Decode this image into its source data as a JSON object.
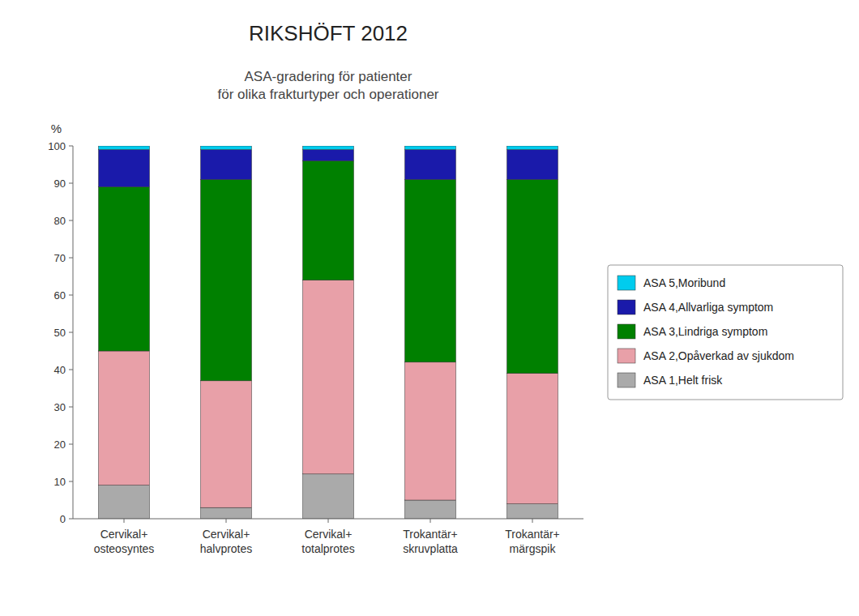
{
  "chart_data": {
    "type": "bar",
    "stacked": true,
    "title": "RIKSHÖFT 2012",
    "subtitle": "ASA-gradering för patienter\nför olika frakturtyper och operationer",
    "y_label": "%",
    "categories": [
      "Cervikal+\nosteosyntes",
      "Cervikal+\nhalvprotes",
      "Cervikal+\ntotalprotes",
      "Trokantär+\nskruvplatta",
      "Trokantär+\nmärgspik"
    ],
    "series": [
      {
        "name": "ASA 1,Helt frisk",
        "color": "#aaaaaa",
        "values": [
          9,
          3,
          12,
          5,
          4
        ]
      },
      {
        "name": "ASA 2,Opåverkad av sjukdom",
        "color": "#e8a0a8",
        "values": [
          36,
          34,
          52,
          37,
          35
        ]
      },
      {
        "name": "ASA 3,Lindriga symptom",
        "color": "#008000",
        "values": [
          44,
          54,
          32,
          49,
          52
        ]
      },
      {
        "name": "ASA 4,Allvarliga symptom",
        "color": "#1a1aaa",
        "values": [
          10,
          8,
          3,
          8,
          8
        ]
      },
      {
        "name": "ASA 5,Moribund",
        "color": "#00ccee",
        "values": [
          1,
          1,
          1,
          1,
          1
        ]
      }
    ],
    "ylim": [
      0,
      100
    ],
    "yticks": [
      0,
      10,
      20,
      30,
      40,
      50,
      60,
      70,
      80,
      90,
      100
    ],
    "grid": false,
    "legend": "right"
  }
}
